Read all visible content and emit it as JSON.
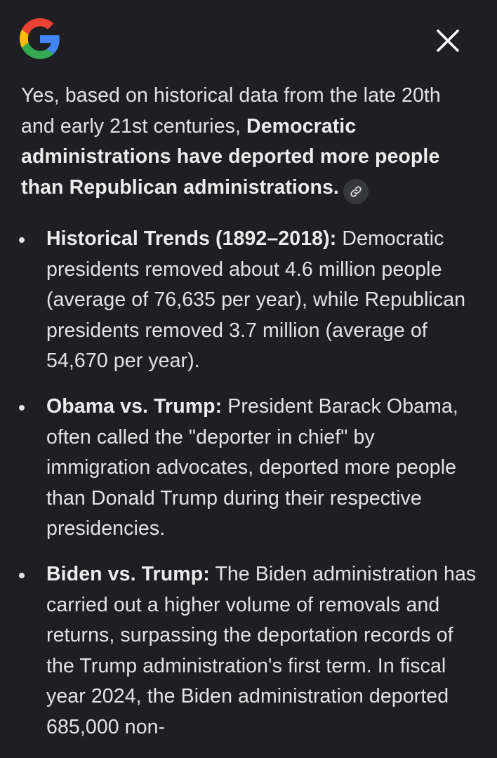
{
  "header": {
    "logo_icon": "google-g-logo",
    "close_icon": "close-icon"
  },
  "answer": {
    "intro_plain": "Yes, based on historical data from the late 20th and early 21st centuries, ",
    "intro_bold": "Democratic administrations have deported more people than Republican administrations.",
    "link_icon": "link-icon"
  },
  "bullets": [
    {
      "title": "Historical Trends (1892–2018):",
      "text": " Democratic presidents removed about 4.6 million people (average of 76,635 per year), while Republican presidents removed 3.7 million (average of 54,670 per year)."
    },
    {
      "title": "Obama vs. Trump:",
      "text": " President Barack Obama, often called the \"deporter in chief\" by immigration advocates, deported more people than Donald Trump during their respective presidencies."
    },
    {
      "title": "Biden vs. Trump:",
      "text": " The Biden administration has carried out a higher volume of removals and returns, surpassing the deportation records of the Trump administration's first term. In fiscal year 2024, the Biden administration deported 685,000 non-"
    }
  ],
  "colors": {
    "background": "#1f1f23",
    "text": "#e3e3e3",
    "chip": "#37383c",
    "google_blue": "#4285F4",
    "google_red": "#EA4335",
    "google_yellow": "#FBBC05",
    "google_green": "#34A853"
  }
}
